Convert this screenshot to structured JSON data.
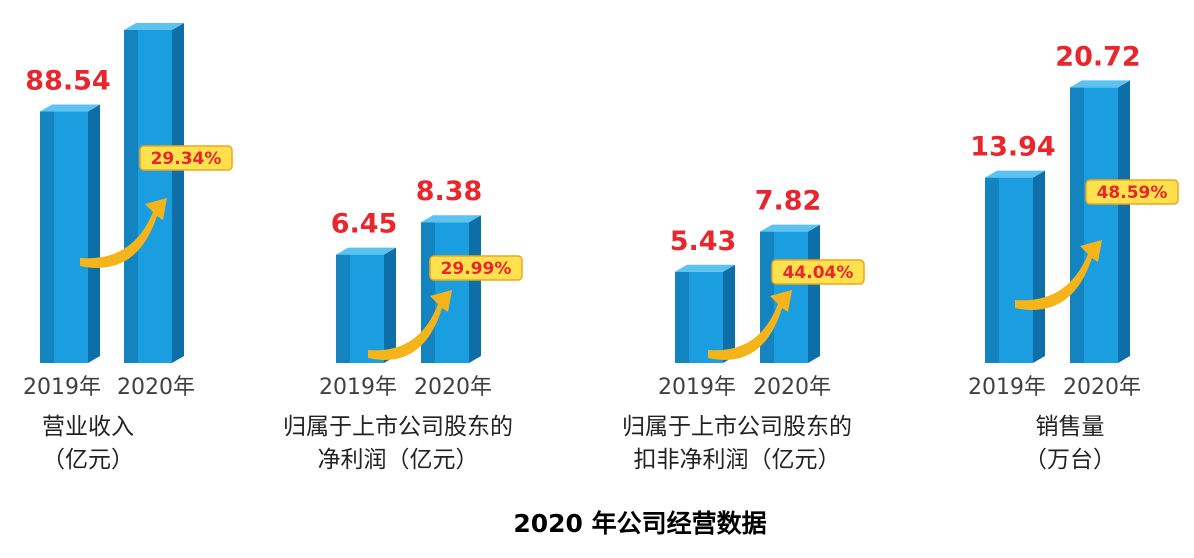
{
  "colors": {
    "bar_front": "#1b9ee0",
    "bar_side": "#0e6fa8",
    "bar_top": "#5cc3f0",
    "value_text": "#e8262c",
    "badge_fill": "#ffe14d",
    "badge_stroke": "#f0a51c",
    "arrow": "#f5b51a"
  },
  "chart_data": [
    {
      "type": "bar",
      "categories": [
        "2019年",
        "2020年"
      ],
      "values": [
        88.54,
        null
      ],
      "value_labels": [
        "88.54",
        ""
      ],
      "growth_label": "29.34%",
      "caption": [
        "营业收入",
        "（亿元）"
      ]
    },
    {
      "type": "bar",
      "categories": [
        "2019年",
        "2020年"
      ],
      "values": [
        6.45,
        8.38
      ],
      "value_labels": [
        "6.45",
        "8.38"
      ],
      "growth_label": "29.99%",
      "caption": [
        "归属于上市公司股东的",
        "净利润（亿元）"
      ]
    },
    {
      "type": "bar",
      "categories": [
        "2019年",
        "2020年"
      ],
      "values": [
        5.43,
        7.82
      ],
      "value_labels": [
        "5.43",
        "7.82"
      ],
      "growth_label": "44.04%",
      "caption": [
        "归属于上市公司股东的",
        "扣非净利润（亿元）"
      ]
    },
    {
      "type": "bar",
      "categories": [
        "2019年",
        "2020年"
      ],
      "values": [
        13.94,
        20.72
      ],
      "value_labels": [
        "13.94",
        "20.72"
      ],
      "growth_label": "48.59%",
      "caption": [
        "销售量",
        "（万台）"
      ]
    }
  ],
  "figure_title": "2020 年公司经营数据"
}
